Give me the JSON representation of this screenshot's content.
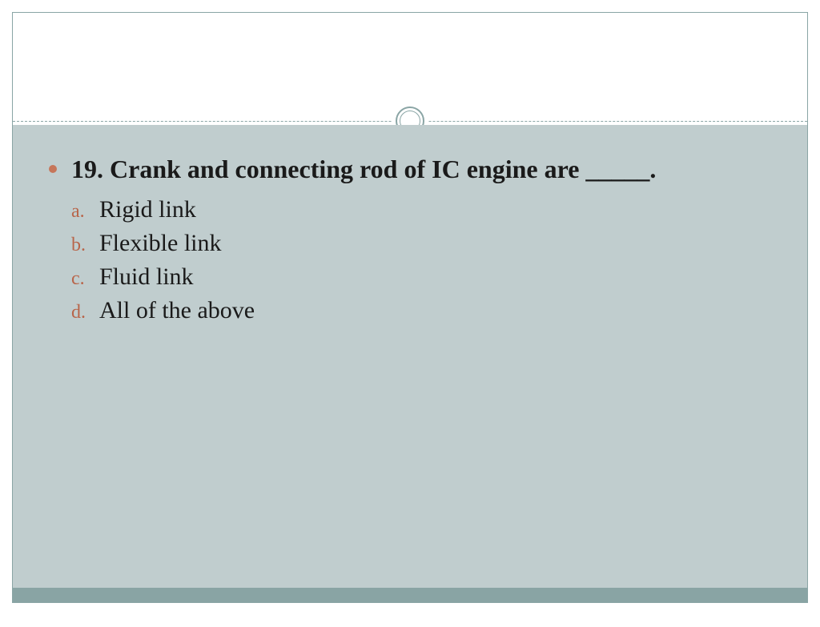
{
  "slide": {
    "question": "19. Crank and connecting rod of IC engine are _____.",
    "options": [
      {
        "marker": "a.",
        "text": "Rigid link"
      },
      {
        "marker": "b.",
        "text": "Flexible link"
      },
      {
        "marker": "c.",
        "text": "Fluid link"
      },
      {
        "marker": "d.",
        "text": "All of the above"
      }
    ]
  },
  "style": {
    "background_color": "#c0cdce",
    "border_color": "#8aa5a5",
    "bottom_bar_color": "#89a4a4",
    "bullet_color": "#c6765a",
    "marker_color": "#b8654a",
    "text_color": "#1a1a1a",
    "question_fontsize": 32,
    "question_fontweight": "bold",
    "option_fontsize": 30,
    "marker_fontsize": 24,
    "font_family": "Georgia"
  }
}
